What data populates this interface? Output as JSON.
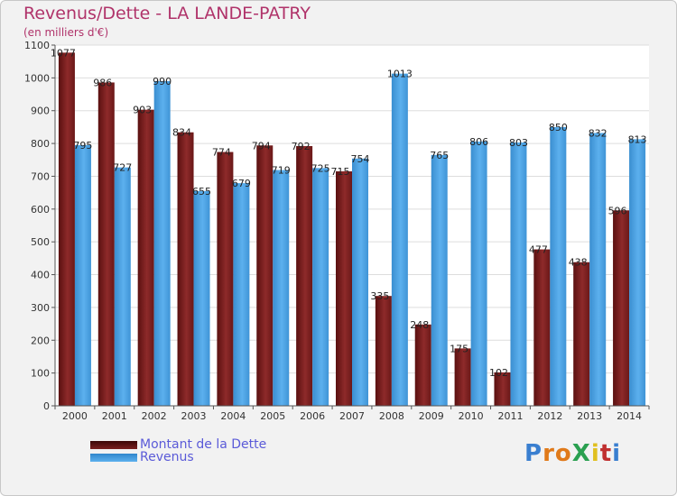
{
  "title": "Revenus/Dette - LA LANDE-PATRY",
  "subtitle": "(en milliers d'€)",
  "colors": {
    "dette": "#7a2020",
    "revenus": "#4a9ee0",
    "grid": "#dddddd",
    "axis_text": "#333333"
  },
  "legend": {
    "dette_label": "Montant de la Dette",
    "revenus_label": "Revenus"
  },
  "logo": {
    "text": "ProXiti"
  },
  "chart_data": {
    "type": "bar",
    "title": "Revenus/Dette - LA LANDE-PATRY",
    "subtitle": "(en milliers d'€)",
    "categories": [
      "2000",
      "2001",
      "2002",
      "2003",
      "2004",
      "2005",
      "2006",
      "2007",
      "2008",
      "2009",
      "2010",
      "2011",
      "2012",
      "2013",
      "2014"
    ],
    "series": [
      {
        "name": "Montant de la Dette",
        "values": [
          1077,
          986,
          903,
          834,
          774,
          794,
          792,
          715,
          335,
          248,
          175,
          102,
          477,
          438,
          596
        ]
      },
      {
        "name": "Revenus",
        "values": [
          795,
          727,
          990,
          655,
          679,
          719,
          725,
          754,
          1013,
          765,
          806,
          803,
          850,
          832,
          813
        ]
      }
    ],
    "yticks": [
      0,
      100,
      200,
      300,
      400,
      500,
      600,
      700,
      800,
      900,
      1000,
      1100
    ],
    "ylim": [
      0,
      1100
    ],
    "grid": true,
    "legend_position": "bottom-left"
  }
}
